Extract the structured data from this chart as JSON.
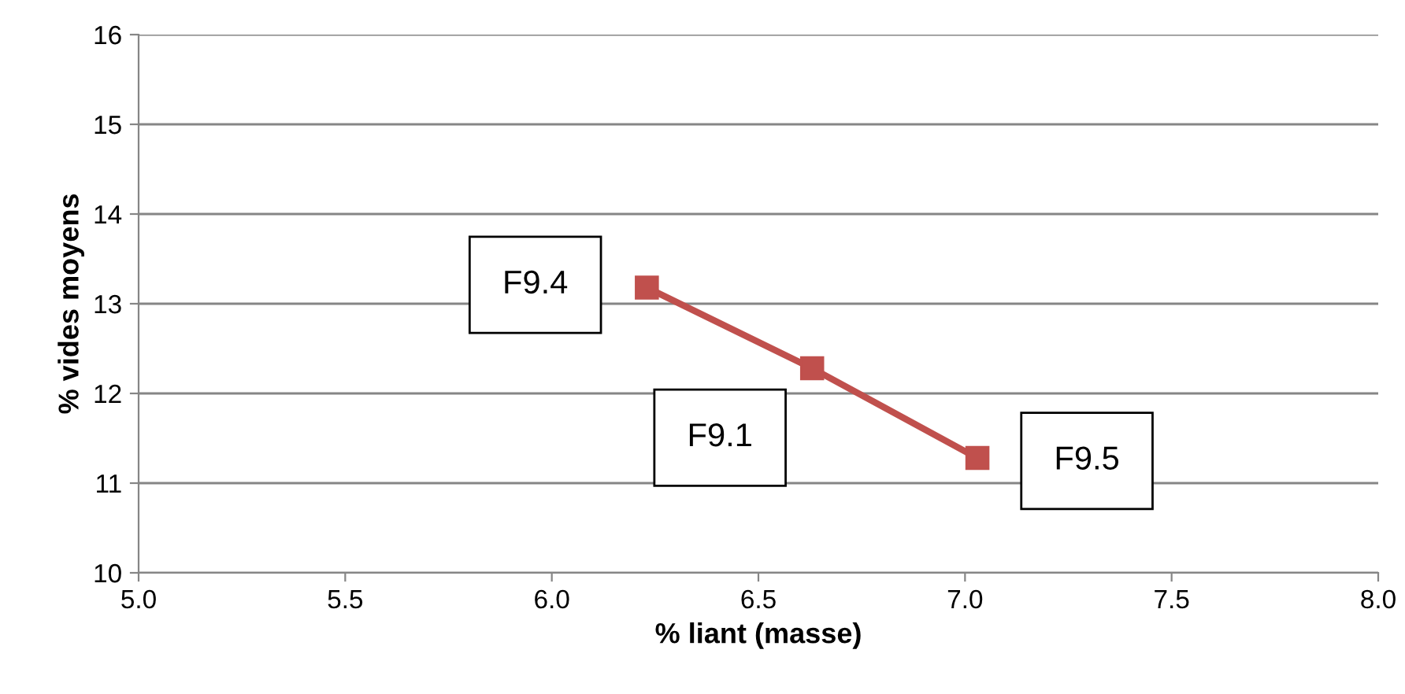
{
  "chart_data": {
    "type": "line",
    "xlabel": "% liant (masse)",
    "ylabel": "% vides moyens",
    "x": [
      6.23,
      6.63,
      7.03
    ],
    "series": [
      {
        "color": "#c0504d",
        "values": [
          13.18,
          12.28,
          11.28
        ]
      }
    ],
    "marker": "square",
    "line_style": "solid",
    "grid": "y",
    "xlim": [
      5.0,
      8.0
    ],
    "xticks": [
      {
        "value": 5.0,
        "label": "5.0"
      },
      {
        "value": 5.5,
        "label": "5.5"
      },
      {
        "value": 6.0,
        "label": "6.0"
      },
      {
        "value": 6.5,
        "label": "6.5"
      },
      {
        "value": 7.0,
        "label": "7.0"
      },
      {
        "value": 7.5,
        "label": "7.5"
      },
      {
        "value": 8.0,
        "label": "8.0"
      }
    ],
    "ylim": [
      10,
      16
    ],
    "yticks": [
      10,
      11,
      12,
      13,
      14,
      15,
      16
    ],
    "annotations": [
      "F9.4",
      "F9.1",
      "F9.5"
    ]
  }
}
